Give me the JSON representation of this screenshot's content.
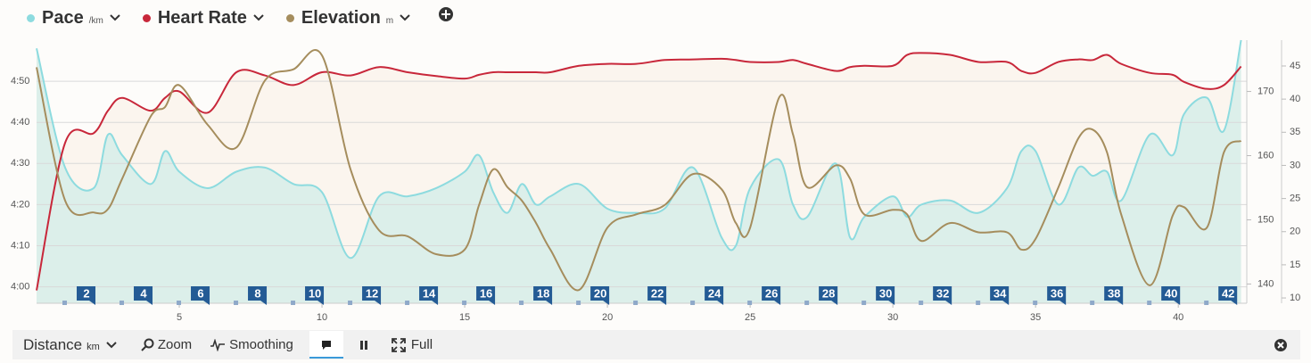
{
  "chart_data": {
    "type": "line",
    "x_label": "Distance",
    "x_unit": "km",
    "x": [
      0,
      1,
      2,
      2.5,
      3,
      4,
      4.5,
      5,
      6,
      7,
      8,
      9,
      10,
      11,
      12,
      13,
      14,
      15,
      15.5,
      16,
      16.5,
      17,
      17.5,
      18,
      19,
      20,
      21,
      22,
      23,
      24,
      24.5,
      25,
      26,
      26.5,
      27,
      28,
      28.5,
      29,
      30,
      30.5,
      31,
      32,
      33,
      34,
      34.5,
      35,
      35.8,
      36.5,
      37,
      37.5,
      38,
      39,
      39.8,
      40.2,
      41,
      41.6,
      42.2
    ],
    "xlim": [
      0,
      42.4
    ],
    "xticks": [
      5,
      10,
      15,
      20,
      25,
      30,
      35,
      40
    ],
    "ylim": [
      236,
      300
    ],
    "yticks": [
      {
        "value": 240,
        "label": "4:00"
      },
      {
        "value": 250,
        "label": "4:10"
      },
      {
        "value": 260,
        "label": "4:20"
      },
      {
        "value": 270,
        "label": "4:30"
      },
      {
        "value": 280,
        "label": "4:40"
      },
      {
        "value": 290,
        "label": "4:50"
      }
    ],
    "y2lim": [
      137,
      178
    ],
    "y2ticks": [
      140,
      150,
      160,
      170
    ],
    "y3lim": [
      9.2,
      48.9
    ],
    "y3ticks": [
      10,
      15,
      20,
      25,
      30,
      35,
      40,
      45
    ],
    "grid": true,
    "laps": [
      2,
      4,
      6,
      8,
      10,
      12,
      14,
      16,
      18,
      20,
      22,
      24,
      26,
      28,
      30,
      32,
      34,
      36,
      38,
      40,
      42
    ],
    "lap_color": "#245b95",
    "series": [
      {
        "name": "Pace",
        "unit": "/km",
        "color": "#8ddbdf",
        "fill": "#dcefea",
        "axis": "y",
        "values": [
          298,
          269,
          264,
          277,
          272,
          265,
          273,
          268,
          264,
          268,
          269,
          265,
          263,
          247,
          262,
          262,
          264,
          268,
          272,
          263,
          258,
          265,
          260,
          262,
          265,
          259,
          258,
          259,
          269,
          252,
          250,
          264,
          271,
          260,
          257,
          270,
          252,
          257,
          262,
          257,
          260,
          261,
          258,
          264,
          273,
          273,
          260,
          269,
          267,
          268,
          261,
          277,
          272,
          282,
          286,
          278,
          300
        ]
      },
      {
        "name": "Heart Rate",
        "unit": "",
        "color": "#c8273a",
        "fill": "#fbf5ee",
        "axis": "y2",
        "values": [
          139,
          162,
          163.5,
          167,
          169,
          167,
          169,
          170,
          166.7,
          173,
          172.5,
          171,
          173,
          172.5,
          173.8,
          173,
          172.4,
          172,
          172.6,
          173,
          173,
          173,
          173,
          173,
          174,
          174.3,
          174.3,
          174.9,
          175,
          175.1,
          174.9,
          174.6,
          174.6,
          174.9,
          174.3,
          173.2,
          173.8,
          174,
          174,
          175.7,
          176,
          175.7,
          174.6,
          174.6,
          173.2,
          172.9,
          174.6,
          175,
          174.9,
          175.7,
          174.3,
          172.9,
          172.6,
          171.5,
          170.4,
          171,
          173.9
        ]
      },
      {
        "name": "Elevation",
        "unit": "m",
        "color": "#a58d5d",
        "fill": null,
        "axis": "y3",
        "values": [
          44.8,
          24.7,
          22.9,
          23.4,
          28,
          37.4,
          38.8,
          42.1,
          36.1,
          32.7,
          42.8,
          44.5,
          46.6,
          29.4,
          20.2,
          19.3,
          16.6,
          17.3,
          24,
          29.4,
          26.7,
          24.7,
          21.3,
          17.3,
          11.2,
          20.6,
          22.6,
          24,
          28.7,
          26.4,
          21.3,
          20.6,
          40.1,
          34.7,
          26.7,
          30,
          28,
          22.6,
          23.3,
          22.6,
          18.6,
          21.3,
          19.9,
          19.9,
          17.3,
          18.9,
          26.7,
          34.1,
          35.4,
          32,
          22.6,
          11.9,
          22.4,
          23.7,
          20.6,
          32,
          33.7
        ]
      }
    ]
  },
  "toolbar": {
    "zoom": "Zoom",
    "smoothing": "Smoothing",
    "full": "Full"
  }
}
